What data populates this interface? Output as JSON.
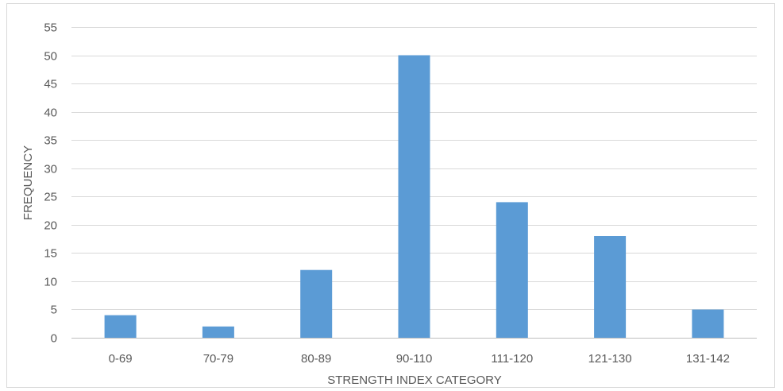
{
  "chart_data": {
    "type": "bar",
    "title": "",
    "xlabel": "STRENGTH INDEX CATEGORY",
    "ylabel": "FREQUENCY",
    "categories": [
      "0-69",
      "70-79",
      "80-89",
      "90-110",
      "111-120",
      "121-130",
      "131-142"
    ],
    "values": [
      4,
      2,
      12,
      50,
      24,
      18,
      5
    ],
    "ylim": [
      0,
      55
    ],
    "yticks": [
      0,
      5,
      10,
      15,
      20,
      25,
      30,
      35,
      40,
      45,
      50,
      55
    ],
    "grid": true,
    "legend": "none",
    "bar_color": "#5b9bd5",
    "grid_color": "#d9d9d9",
    "axis_color": "#bfbfbf",
    "text_color": "#595959"
  }
}
